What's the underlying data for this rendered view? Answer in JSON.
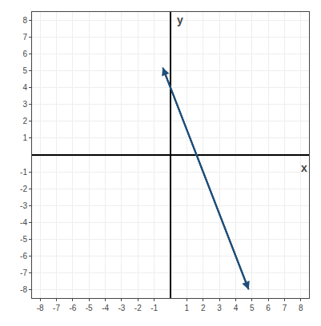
{
  "chart_data": {
    "type": "line",
    "x": [
      -0.48,
      4.8
    ],
    "values": [
      5.2,
      -8
    ],
    "color": "#1f4e79",
    "marker": "arrow",
    "xlabel": "x",
    "ylabel": "y",
    "xlim": [
      -8.5,
      8.5
    ],
    "ylim": [
      -8.5,
      8.5
    ],
    "xticks": [
      -8,
      -7,
      -6,
      -5,
      -4,
      -3,
      -2,
      -1,
      1,
      2,
      3,
      4,
      5,
      6,
      7,
      8
    ],
    "yticks": [
      -8,
      -7,
      -6,
      -5,
      -4,
      -3,
      -2,
      -1,
      1,
      2,
      3,
      4,
      5,
      6,
      7,
      8
    ],
    "grid": true
  }
}
